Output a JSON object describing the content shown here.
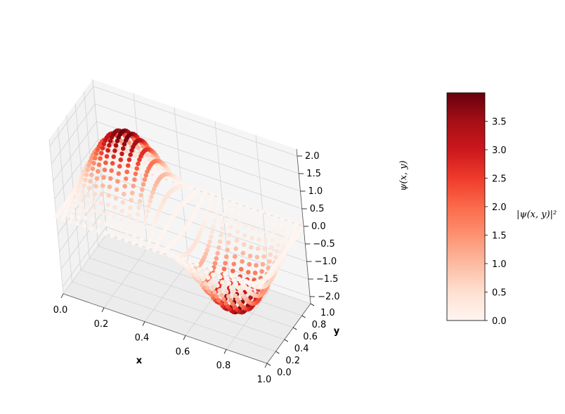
{
  "chart_data": {
    "type": "scatter",
    "projection": "3d",
    "function": "psi(x,y) = 2*sin(2*pi*x)*sin(pi*y)",
    "color_value": "|psi(x,y)|^2",
    "colormap": "Reds",
    "grid": true,
    "x_range": [
      0,
      1
    ],
    "y_range": [
      0,
      1
    ],
    "z_range": [
      -2.2,
      2.2
    ],
    "color_range": [
      0,
      4.0
    ],
    "x_ticks": [
      "0.0",
      "0.2",
      "0.4",
      "0.6",
      "0.8",
      "1.0"
    ],
    "y_ticks": [
      "0.0",
      "0.2",
      "0.4",
      "0.6",
      "0.8",
      "1.0"
    ],
    "z_ticks": [
      "−2.0",
      "−1.5",
      "−1.0",
      "−0.5",
      "0.0",
      "0.5",
      "1.0",
      "1.5",
      "2.0"
    ],
    "colorbar_ticks": [
      "0.0",
      "0.5",
      "1.0",
      "1.5",
      "2.0",
      "2.5",
      "3.0",
      "3.5"
    ],
    "xlabel": "x",
    "ylabel": "y",
    "zlabel": "ψ(x, y)",
    "colorbar_label": "|ψ(x, y)|²",
    "grid_points": 30
  }
}
